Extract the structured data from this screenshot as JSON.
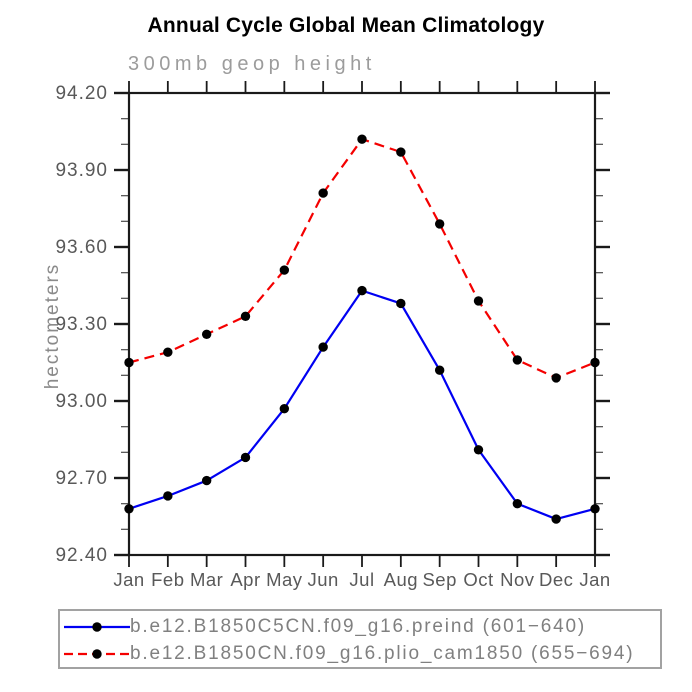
{
  "page": {
    "background": "#ffffff"
  },
  "chart_data": {
    "type": "line",
    "title": "Annual Cycle Global Mean Climatology",
    "subtitle": "300mb geop height",
    "ylabel": "hectometers",
    "xlabel": "",
    "categories": [
      "Jan",
      "Feb",
      "Mar",
      "Apr",
      "May",
      "Jun",
      "Jul",
      "Aug",
      "Sep",
      "Oct",
      "Nov",
      "Dec",
      "Jan"
    ],
    "ylim": [
      92.4,
      94.2
    ],
    "ytick_major_step": 0.3,
    "ytick_minor_step": 0.1,
    "ytick_labels": [
      "92.40",
      "92.70",
      "93.00",
      "93.30",
      "93.60",
      "93.90",
      "94.20"
    ],
    "grid": false,
    "legend_position": "bottom-outside",
    "frame_color": "#1a1a1a",
    "minor_tick_color": "#5a5a5a",
    "tick_label_color": "#595959",
    "subtitle_color": "#9c9c9c",
    "ylabel_color": "#8a8a8a",
    "legend_text_color": "#808080",
    "legend_border_color": "#a2a2a2",
    "marker_color": "#000000",
    "series": [
      {
        "name": "b.e12.B1850C5CN.f09_g16.preind (601−640)",
        "color": "#0000f2",
        "line_style": "solid",
        "marker": "filled-circle",
        "values": [
          92.58,
          92.63,
          92.69,
          92.78,
          92.97,
          93.21,
          93.43,
          93.38,
          93.12,
          92.81,
          92.6,
          92.54,
          92.58
        ]
      },
      {
        "name": "b.e12.B1850CN.f09_g16.plio_cam1850 (655−694)",
        "color": "#f40000",
        "line_style": "dashed",
        "marker": "filled-circle",
        "values": [
          93.15,
          93.19,
          93.26,
          93.33,
          93.51,
          93.81,
          94.02,
          93.97,
          93.69,
          93.39,
          93.16,
          93.09,
          93.15
        ]
      }
    ]
  }
}
